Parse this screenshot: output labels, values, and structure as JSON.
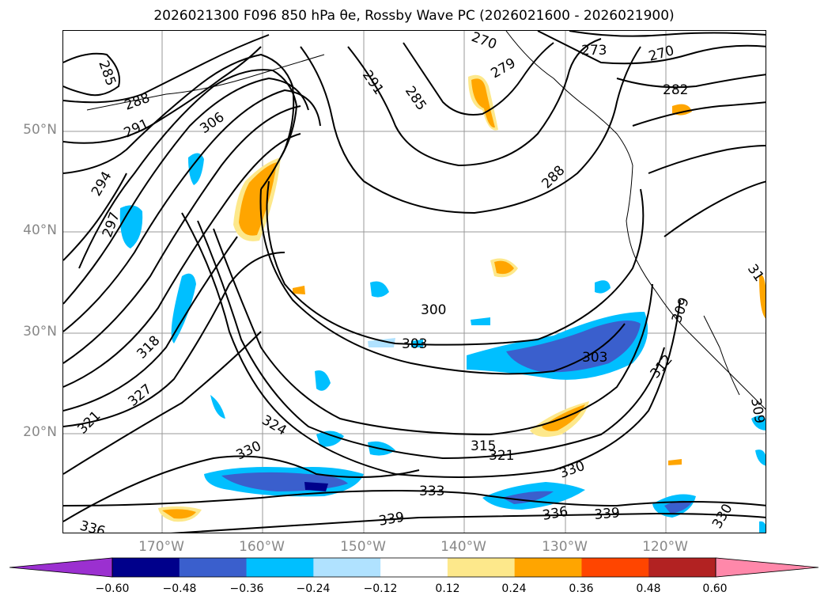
{
  "title": "2026021300 F096 850 hPa θe, Rossby Wave PC (2026021600 - 2026021900)",
  "lat_labels": [
    "50°N",
    "40°N",
    "30°N",
    "20°N"
  ],
  "lon_labels": [
    "170°W",
    "160°W",
    "150°W",
    "140°W",
    "130°W",
    "120°W"
  ],
  "contour_labels": [
    "285",
    "288",
    "291",
    "294",
    "297",
    "306",
    "318",
    "327",
    "321",
    "324",
    "330",
    "336",
    "291",
    "285",
    "270",
    "279",
    "273",
    "270",
    "282",
    "288",
    "300",
    "303",
    "303",
    "312",
    "309",
    "315",
    "321",
    "330",
    "333",
    "339",
    "336",
    "339",
    "330",
    "309",
    "31"
  ],
  "colorbar": {
    "ticks": [
      "−0.60",
      "−0.48",
      "−0.36",
      "−0.24",
      "−0.12",
      "0.12",
      "0.24",
      "0.36",
      "0.48",
      "0.60"
    ],
    "colors": [
      "#9b30d0",
      "#00008b",
      "#3a5fcd",
      "#00bfff",
      "#b0e2ff",
      "#ffffff",
      "#fde88b",
      "#ffa500",
      "#ff4500",
      "#b22222",
      "#ff88aa"
    ]
  },
  "colors": {
    "neg_light": "#b0e2ff",
    "neg_mid": "#00bfff",
    "neg_dark": "#3a5fcd",
    "neg_deep": "#00008b",
    "pos_light": "#fde88b",
    "pos_mid": "#ffa500"
  }
}
